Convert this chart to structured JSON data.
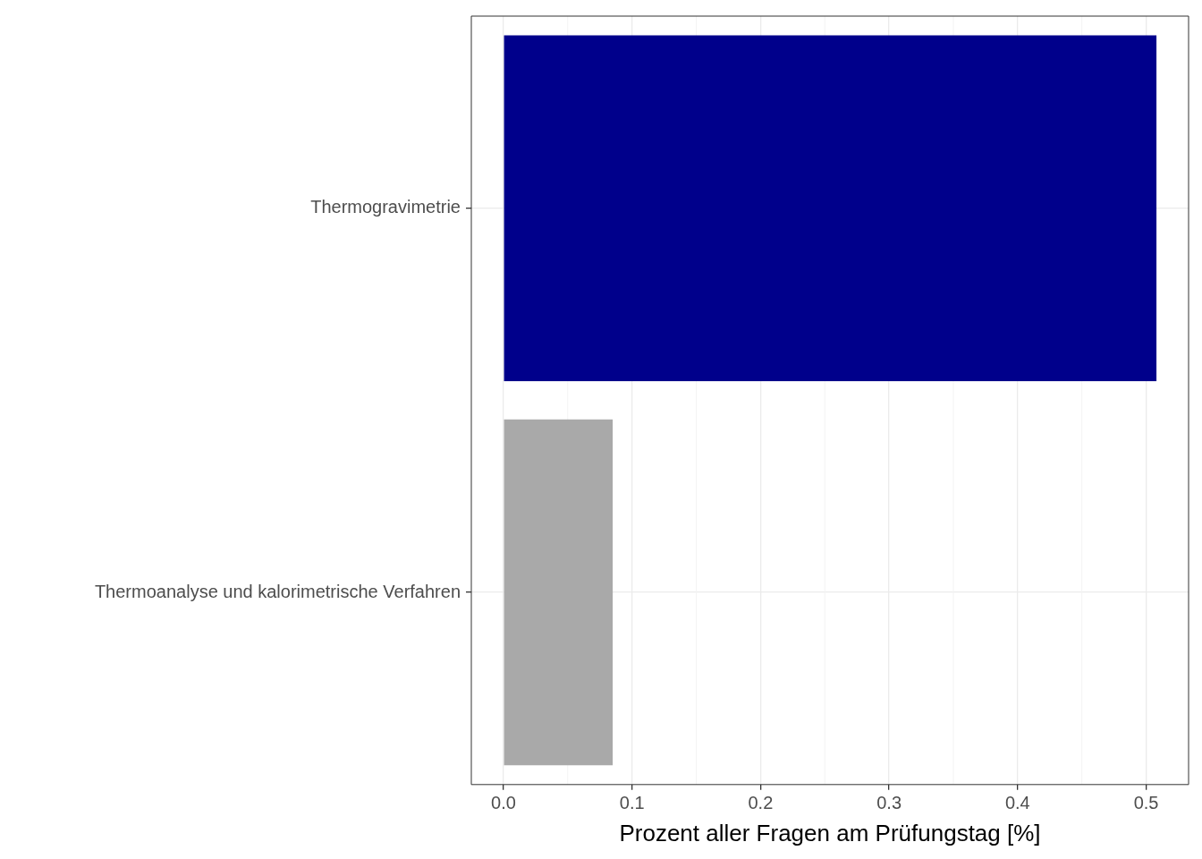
{
  "chart_data": {
    "type": "bar",
    "orientation": "horizontal",
    "xlabel": "Prozent aller Fragen am Prüfungstag [%]",
    "categories": [
      "Thermogravimetrie",
      "Thermoanalyse und kalorimetrische Verfahren"
    ],
    "values": [
      0.508,
      0.085
    ],
    "colors": [
      "#00008b",
      "#a9a9a9"
    ],
    "xlim": [
      -0.025,
      0.533
    ],
    "xticks": [
      {
        "value": 0,
        "label": "0.0"
      },
      0.1,
      0.2,
      0.3,
      0.4,
      0.5
    ],
    "grid": true,
    "legend": false
  }
}
